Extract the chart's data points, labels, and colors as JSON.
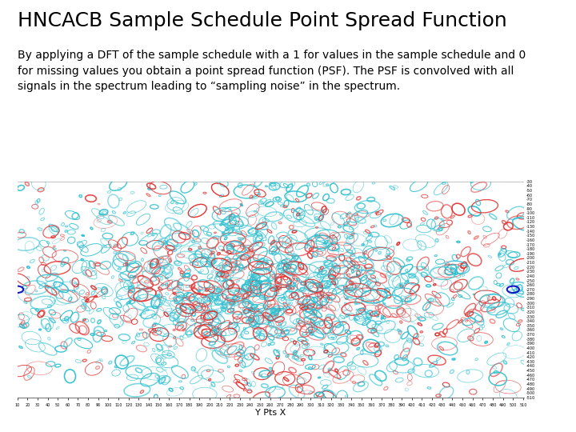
{
  "title": "HNCACB Sample Schedule Point Spread Function",
  "subtitle_line1": "By applying a DFT of the sample schedule with a 1 for values in the sample schedule and 0",
  "subtitle_line2": "for missing values you obtain a point spread function (PSF). The PSF is convolved with all",
  "subtitle_line3": "signals in the spectrum leading to “sampling noise” in the spectrum.",
  "xlabel": "Y Pts X",
  "background_color": "#ffffff",
  "title_fontsize": 18,
  "subtitle_fontsize": 10,
  "cyan_color": "#30c0d0",
  "red_color": "#e03030",
  "blue_color": "#0000bb",
  "x_min": 10,
  "x_max": 511,
  "y_min": -510,
  "y_max": -30,
  "seed": 7
}
